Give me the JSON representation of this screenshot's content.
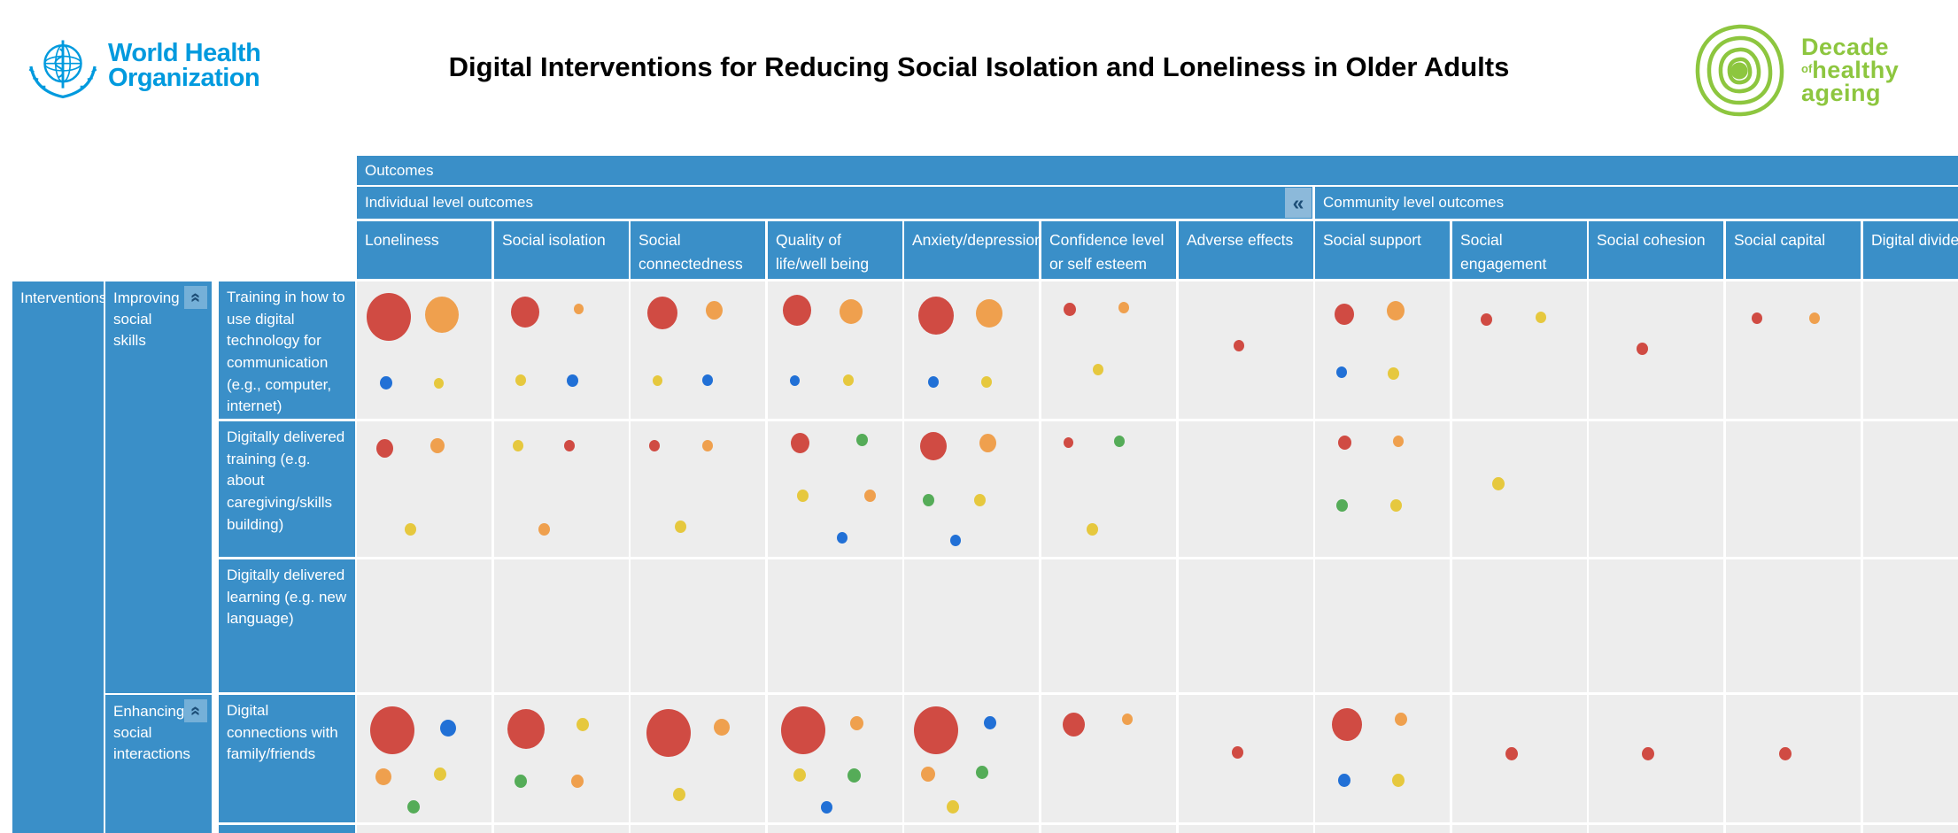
{
  "header": {
    "title": "Digital Interventions for Reducing Social Isolation and Loneliness in Older Adults",
    "who_logo": {
      "line1": "World Health",
      "line2": "Organization"
    },
    "decade_logo": {
      "word1": "Decade",
      "of": "of",
      "word2": "healthy",
      "word3": "ageing"
    }
  },
  "colors": {
    "header_blue": "#3a8fc8",
    "cell_bg": "#ededed",
    "who_blue": "#009ade",
    "decade_green": "#8dc63f",
    "collapse_btn_bg": "#8cb9da",
    "collapse_glyph": "#1d4e77",
    "bubble": {
      "red": "#d04b43",
      "orange": "#efa04e",
      "blue": "#2170d6",
      "yellow": "#e6c83e",
      "green": "#55ac58"
    }
  },
  "matrix": {
    "outcomes_label": "Outcomes",
    "collapse_icon": "«",
    "group_headers": [
      {
        "label": "Individual level outcomes",
        "span": 7
      },
      {
        "label": "Community level outcomes",
        "span": 5
      }
    ],
    "columns": [
      "Loneliness",
      "Social isolation",
      "Social connectedness",
      "Quality of life/well being",
      "Anxiety/depression",
      "Confidence level or self esteem",
      "Adverse effects",
      "Social support",
      "Social engagement",
      "Social cohesion",
      "Social capital",
      "Digital divide"
    ],
    "row_header": {
      "interventions_label": "Interventions",
      "groups": [
        {
          "label": "Improving social skills",
          "rows": [
            "Training in how to use digital technology for communication (e.g., computer, internet)",
            "Digitally delivered training (e.g. about caregiving/skills building)",
            "Digitally delivered learning (e.g. new language)"
          ]
        },
        {
          "label": "Enhancing social interactions",
          "rows": [
            "Digital connections with family/friends"
          ]
        }
      ]
    }
  },
  "chart_data": {
    "type": "bubble-matrix",
    "description": "Evidence gap map: bubbles per intervention-outcome cell; bubble = [color, radius_px, x_percent, y_percent]; size reflects volume of evidence",
    "columns": [
      "Loneliness",
      "Social isolation",
      "Social connectedness",
      "Quality of life/well being",
      "Anxiety/depression",
      "Confidence level or self esteem",
      "Adverse effects",
      "Social support",
      "Social engagement",
      "Social cohesion",
      "Social capital",
      "Digital divide"
    ],
    "rows": [
      {
        "intervention": "Training in how to use digital technology for communication (e.g., computer, internet)",
        "cells": [
          [
            [
              "red",
              25,
              24,
              26
            ],
            [
              "orange",
              19,
              63,
              24
            ],
            [
              "blue",
              7,
              22,
              74
            ],
            [
              "yellow",
              5.5,
              61,
              74
            ]
          ],
          [
            [
              "red",
              16,
              23,
              22
            ],
            [
              "orange",
              5.5,
              63,
              20
            ],
            [
              "yellow",
              6,
              20,
              72
            ],
            [
              "blue",
              6.5,
              58,
              72
            ]
          ],
          [
            [
              "red",
              17,
              24,
              23
            ],
            [
              "orange",
              9.5,
              62,
              21
            ],
            [
              "yellow",
              5.5,
              20,
              72
            ],
            [
              "blue",
              6,
              57,
              72
            ]
          ],
          [
            [
              "red",
              16,
              22,
              21
            ],
            [
              "orange",
              13,
              62,
              22
            ],
            [
              "blue",
              5.5,
              20,
              72
            ],
            [
              "yellow",
              6,
              60,
              72
            ]
          ],
          [
            [
              "red",
              20,
              24,
              25
            ],
            [
              "orange",
              15,
              63,
              23
            ],
            [
              "blue",
              6,
              22,
              73
            ],
            [
              "yellow",
              6,
              61,
              73
            ]
          ],
          [
            [
              "red",
              7,
              21,
              20
            ],
            [
              "orange",
              6,
              61,
              19
            ],
            [
              "yellow",
              6,
              42,
              64
            ]
          ],
          [
            [
              "red",
              6,
              45,
              47
            ]
          ],
          [
            [
              "red",
              11,
              22,
              24
            ],
            [
              "orange",
              10,
              60,
              21
            ],
            [
              "blue",
              6,
              20,
              66
            ],
            [
              "yellow",
              6.5,
              58,
              67
            ]
          ],
          [
            [
              "red",
              6.5,
              25,
              28
            ],
            [
              "yellow",
              6,
              66,
              26
            ]
          ],
          [
            [
              "red",
              6.5,
              40,
              49
            ]
          ],
          [
            [
              "red",
              6,
              23,
              27
            ],
            [
              "orange",
              6,
              66,
              27
            ]
          ],
          []
        ]
      },
      {
        "intervention": "Digitally delivered training (e.g. about caregiving/skills building)",
        "cells": [
          [
            [
              "red",
              9.5,
              21,
              20
            ],
            [
              "orange",
              8,
              60,
              18
            ],
            [
              "yellow",
              6.5,
              40,
              80
            ]
          ],
          [
            [
              "yellow",
              6,
              18,
              18
            ],
            [
              "red",
              6,
              56,
              18
            ],
            [
              "orange",
              6.5,
              37,
              80
            ]
          ],
          [
            [
              "red",
              6,
              18,
              18
            ],
            [
              "orange",
              6,
              57,
              18
            ],
            [
              "yellow",
              6.5,
              37,
              78
            ]
          ],
          [
            [
              "red",
              10.5,
              24,
              16
            ],
            [
              "green",
              6.5,
              70,
              14
            ],
            [
              "yellow",
              6.5,
              26,
              55
            ],
            [
              "orange",
              6.5,
              76,
              55
            ],
            [
              "blue",
              6,
              55,
              86
            ]
          ],
          [
            [
              "red",
              15,
              22,
              18
            ],
            [
              "orange",
              9.5,
              62,
              16
            ],
            [
              "green",
              6.5,
              18,
              58
            ],
            [
              "yellow",
              6.5,
              56,
              58
            ],
            [
              "blue",
              6,
              38,
              88
            ]
          ],
          [
            [
              "red",
              5.5,
              20,
              16
            ],
            [
              "green",
              6,
              58,
              15
            ],
            [
              "yellow",
              6.5,
              38,
              80
            ]
          ],
          [],
          [
            [
              "red",
              7.5,
              22,
              16
            ],
            [
              "orange",
              6,
              62,
              15
            ],
            [
              "green",
              6.5,
              20,
              62
            ],
            [
              "yellow",
              6.5,
              60,
              62
            ]
          ],
          [
            [
              "yellow",
              7,
              34,
              46
            ]
          ],
          [],
          [],
          []
        ]
      },
      {
        "intervention": "Digitally delivered learning (e.g. new language)",
        "cells": [
          [],
          [],
          [],
          [],
          [],
          [],
          [],
          [],
          [],
          [],
          [],
          []
        ]
      },
      {
        "intervention": "Digital connections with family/friends",
        "cells": [
          [
            [
              "red",
              25,
              26,
              28
            ],
            [
              "blue",
              9,
              68,
              26
            ],
            [
              "orange",
              9,
              20,
              64
            ],
            [
              "yellow",
              7,
              62,
              62
            ],
            [
              "green",
              7,
              42,
              88
            ]
          ],
          [
            [
              "red",
              21,
              24,
              27
            ],
            [
              "yellow",
              7,
              66,
              23
            ],
            [
              "green",
              7,
              20,
              68
            ],
            [
              "orange",
              7,
              62,
              68
            ]
          ],
          [
            [
              "red",
              25,
              28,
              30
            ],
            [
              "orange",
              9,
              68,
              25
            ],
            [
              "yellow",
              7,
              36,
              78
            ]
          ],
          [
            [
              "red",
              25,
              26,
              28
            ],
            [
              "orange",
              7.5,
              66,
              22
            ],
            [
              "yellow",
              7,
              24,
              63
            ],
            [
              "green",
              7.5,
              64,
              63
            ],
            [
              "blue",
              6.5,
              44,
              88
            ]
          ],
          [
            [
              "red",
              25,
              24,
              28
            ],
            [
              "blue",
              7,
              64,
              22
            ],
            [
              "orange",
              8,
              18,
              62
            ],
            [
              "green",
              7,
              58,
              61
            ],
            [
              "yellow",
              7,
              36,
              88
            ]
          ],
          [
            [
              "red",
              12.5,
              24,
              23
            ],
            [
              "orange",
              6,
              64,
              19
            ]
          ],
          [
            [
              "red",
              6.5,
              44,
              45
            ]
          ],
          [
            [
              "red",
              17,
              24,
              23
            ],
            [
              "orange",
              7,
              64,
              19
            ],
            [
              "blue",
              7,
              22,
              67
            ],
            [
              "yellow",
              7,
              62,
              67
            ]
          ],
          [
            [
              "red",
              7,
              44,
              46
            ]
          ],
          [
            [
              "red",
              7,
              44,
              46
            ]
          ],
          [
            [
              "red",
              7,
              44,
              46
            ]
          ],
          []
        ]
      },
      {
        "intervention": "",
        "partial": true,
        "cells": [
          [],
          [],
          [],
          [],
          [],
          [],
          [],
          [],
          [],
          [],
          [],
          []
        ]
      }
    ]
  }
}
